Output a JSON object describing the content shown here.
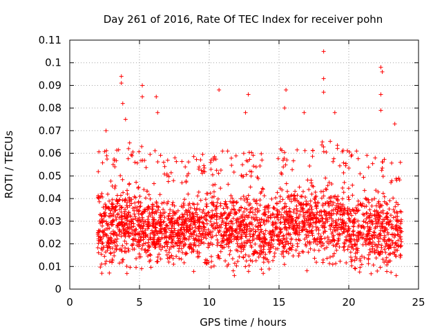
{
  "chart_data": {
    "type": "scatter",
    "title": "Day 261 of 2016, Rate Of TEC Index for receiver pohn",
    "xlabel": "GPS time / hours",
    "ylabel": "ROTI / TECUs",
    "xlim": [
      0,
      25
    ],
    "ylim": [
      0,
      0.11
    ],
    "xticks": [
      0,
      5,
      10,
      15,
      20,
      25
    ],
    "xtick_labels": [
      "0",
      "5",
      "10",
      "15",
      "20",
      "25"
    ],
    "yticks": [
      0,
      0.01,
      0.02,
      0.03,
      0.04,
      0.05,
      0.06,
      0.07,
      0.08,
      0.09,
      0.1,
      0.11
    ],
    "ytick_labels": [
      "0",
      "0.01",
      "0.02",
      "0.03",
      "0.04",
      "0.05",
      "0.06",
      "0.07",
      "0.08",
      "0.09",
      "0.1",
      "0.11"
    ],
    "grid": true,
    "marker": "plus",
    "color": "#ff0000",
    "time_range_hours": [
      2.0,
      23.8
    ],
    "band_estimate": [
      {
        "x": 2,
        "lo": 0.008,
        "hi": 0.05
      },
      {
        "x": 4,
        "lo": 0.01,
        "hi": 0.055
      },
      {
        "x": 6,
        "lo": 0.01,
        "hi": 0.05
      },
      {
        "x": 8,
        "lo": 0.012,
        "hi": 0.045
      },
      {
        "x": 10,
        "lo": 0.012,
        "hi": 0.05
      },
      {
        "x": 12,
        "lo": 0.01,
        "hi": 0.05
      },
      {
        "x": 14,
        "lo": 0.01,
        "hi": 0.048
      },
      {
        "x": 16,
        "lo": 0.012,
        "hi": 0.052
      },
      {
        "x": 18,
        "lo": 0.012,
        "hi": 0.055
      },
      {
        "x": 20,
        "lo": 0.01,
        "hi": 0.05
      },
      {
        "x": 22,
        "lo": 0.01,
        "hi": 0.048
      },
      {
        "x": 23.8,
        "lo": 0.008,
        "hi": 0.045
      }
    ],
    "highlighted_points": [
      {
        "x": 2.6,
        "y": 0.07
      },
      {
        "x": 3.7,
        "y": 0.094
      },
      {
        "x": 3.7,
        "y": 0.091
      },
      {
        "x": 3.8,
        "y": 0.082
      },
      {
        "x": 4.0,
        "y": 0.075
      },
      {
        "x": 5.2,
        "y": 0.09
      },
      {
        "x": 5.2,
        "y": 0.085
      },
      {
        "x": 6.2,
        "y": 0.085
      },
      {
        "x": 6.3,
        "y": 0.078
      },
      {
        "x": 10.7,
        "y": 0.088
      },
      {
        "x": 12.8,
        "y": 0.086
      },
      {
        "x": 12.6,
        "y": 0.078
      },
      {
        "x": 15.5,
        "y": 0.088
      },
      {
        "x": 15.4,
        "y": 0.08
      },
      {
        "x": 16.8,
        "y": 0.078
      },
      {
        "x": 18.2,
        "y": 0.105
      },
      {
        "x": 18.2,
        "y": 0.093
      },
      {
        "x": 18.2,
        "y": 0.087
      },
      {
        "x": 19.0,
        "y": 0.078
      },
      {
        "x": 22.3,
        "y": 0.098
      },
      {
        "x": 22.4,
        "y": 0.096
      },
      {
        "x": 22.3,
        "y": 0.086
      },
      {
        "x": 22.3,
        "y": 0.079
      },
      {
        "x": 23.3,
        "y": 0.073
      },
      {
        "x": 23.7,
        "y": 0.056
      },
      {
        "x": 2.3,
        "y": 0.007
      },
      {
        "x": 11.8,
        "y": 0.006
      },
      {
        "x": 23.4,
        "y": 0.006
      }
    ]
  }
}
